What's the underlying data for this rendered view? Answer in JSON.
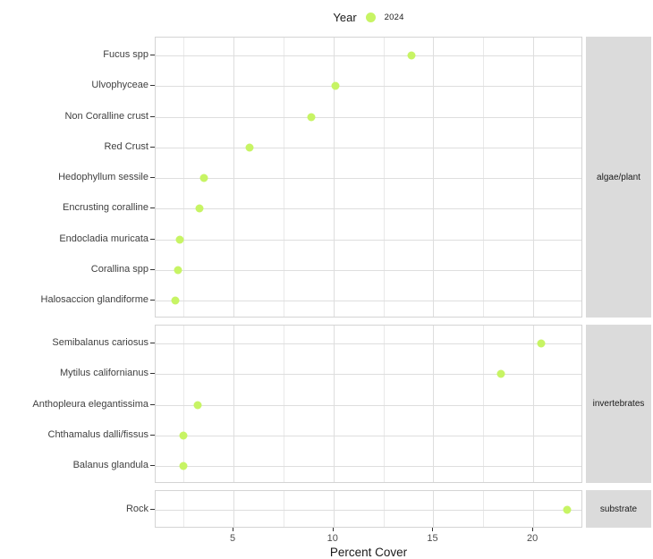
{
  "legend": {
    "title": "Year",
    "items": [
      {
        "label": "2024",
        "color": "#c7f464"
      }
    ]
  },
  "axis": {
    "x_label": "Percent Cover",
    "x_ticks": [
      5,
      10,
      15,
      20
    ],
    "x_minor_ticks": [
      2.5,
      7.5,
      12.5,
      17.5
    ],
    "x_domain": [
      1.1,
      22.5
    ]
  },
  "colors": {
    "point": "#c7f464",
    "grid_major": "#dedede",
    "grid_minor": "#e9e9e9",
    "panel_border": "#d4d4d4",
    "strip_background": "#dbdbdb"
  },
  "chart_data": {
    "type": "scatter",
    "title": "",
    "xlabel": "Percent Cover",
    "legend_title": "Year",
    "series_name": "2024",
    "point_color": "#c7f464",
    "xlim": [
      1.1,
      22.5
    ],
    "grid": true,
    "legend_position": "top",
    "facets": [
      {
        "label": "algae/plant",
        "rows": [
          {
            "label": "Fucus spp",
            "value": 13.9
          },
          {
            "label": "Ulvophyceae",
            "value": 10.1
          },
          {
            "label": "Non Coralline crust",
            "value": 8.9
          },
          {
            "label": "Red Crust",
            "value": 5.8
          },
          {
            "label": "Hedophyllum sessile",
            "value": 3.5
          },
          {
            "label": "Encrusting coralline",
            "value": 3.3
          },
          {
            "label": "Endocladia muricata",
            "value": 2.3
          },
          {
            "label": "Corallina spp",
            "value": 2.2
          },
          {
            "label": "Halosaccion glandiforme",
            "value": 2.1
          }
        ]
      },
      {
        "label": "invertebrates",
        "rows": [
          {
            "label": "Semibalanus cariosus",
            "value": 20.4
          },
          {
            "label": "Mytilus californianus",
            "value": 18.4
          },
          {
            "label": "Anthopleura elegantissima",
            "value": 3.2
          },
          {
            "label": "Chthamalus dalli/fissus",
            "value": 2.5
          },
          {
            "label": "Balanus glandula",
            "value": 2.5
          }
        ]
      },
      {
        "label": "substrate",
        "rows": [
          {
            "label": "Rock",
            "value": 21.7
          }
        ]
      }
    ]
  }
}
